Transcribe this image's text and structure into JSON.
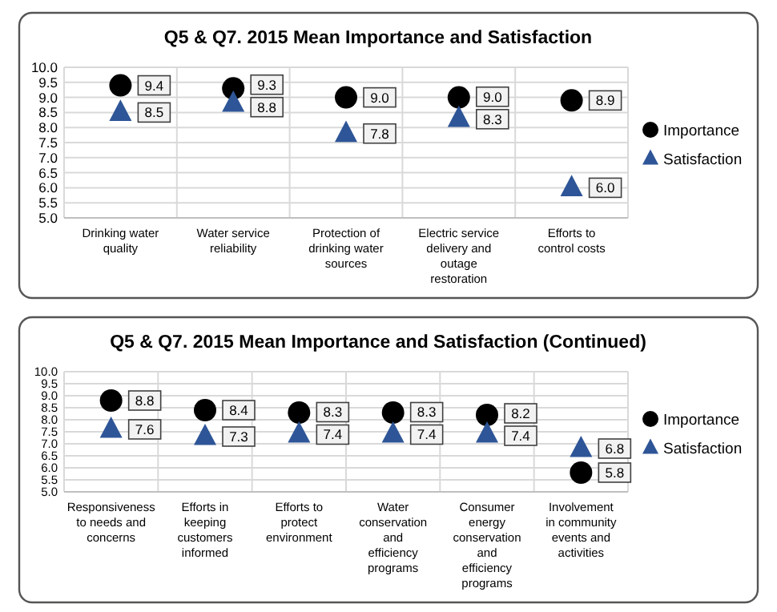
{
  "chart_data": [
    {
      "type": "scatter",
      "title": "Q5 & Q7. 2015 Mean Importance and Satisfaction",
      "categories": [
        "Drinking water quality",
        "Water service reliability",
        "Protection of drinking water sources",
        "Electric service delivery and outage restoration",
        "Efforts to control costs"
      ],
      "series": [
        {
          "name": "Importance",
          "color": "#000000",
          "marker": "circle",
          "values": [
            9.4,
            9.3,
            9.0,
            9.0,
            8.9
          ],
          "value_labels": [
            "9.4",
            "9.3",
            "9.0",
            "9.0",
            "8.9"
          ]
        },
        {
          "name": "Satisfaction",
          "color": "#2e5597",
          "marker": "triangle",
          "values": [
            8.5,
            8.8,
            7.8,
            8.3,
            6.0
          ],
          "value_labels": [
            "8.5",
            "8.8",
            "7.8",
            "8.3",
            "6.0"
          ]
        }
      ],
      "ylim": [
        5,
        10
      ],
      "yticks": [
        {
          "value": 5,
          "label": "5.0"
        },
        {
          "value": 5.5,
          "label": "5.5"
        },
        {
          "value": 6,
          "label": "6.0"
        },
        {
          "value": 6.5,
          "label": "6.5"
        },
        {
          "value": 7,
          "label": "7.0"
        },
        {
          "value": 7.5,
          "label": "7.5"
        },
        {
          "value": 8,
          "label": "8.0"
        },
        {
          "value": 8.5,
          "label": "8.5"
        },
        {
          "value": 9,
          "label": "9.0"
        },
        {
          "value": 9.5,
          "label": "9.5"
        },
        {
          "value": 10,
          "label": "10.0"
        }
      ],
      "grid": true,
      "legend": "right"
    },
    {
      "type": "scatter",
      "title": "Q5 & Q7. 2015 Mean Importance and Satisfaction (Continued)",
      "categories": [
        "Responsiveness to needs and concerns",
        "Efforts in keeping customers informed",
        "Efforts to protect environment",
        "Water conservation and efficiency programs",
        "Consumer energy conservation and efficiency programs",
        "Involvement in community events and activities"
      ],
      "series": [
        {
          "name": "Importance",
          "color": "#000000",
          "marker": "circle",
          "values": [
            8.8,
            8.4,
            8.3,
            8.3,
            8.2,
            5.8
          ],
          "value_labels": [
            "8.8",
            "8.4",
            "8.3",
            "8.3",
            "8.2",
            "5.8"
          ]
        },
        {
          "name": "Satisfaction",
          "color": "#2e5597",
          "marker": "triangle",
          "values": [
            7.6,
            7.3,
            7.4,
            7.4,
            7.4,
            6.8
          ],
          "value_labels": [
            "7.6",
            "7.3",
            "7.4",
            "7.4",
            "7.4",
            "6.8"
          ]
        }
      ],
      "ylim": [
        5,
        10
      ],
      "yticks": [
        {
          "value": 5,
          "label": "5.0"
        },
        {
          "value": 5.5,
          "label": "5.5"
        },
        {
          "value": 6,
          "label": "6.0"
        },
        {
          "value": 6.5,
          "label": "6.5"
        },
        {
          "value": 7,
          "label": "7.0"
        },
        {
          "value": 7.5,
          "label": "7.5"
        },
        {
          "value": 8,
          "label": "8.0"
        },
        {
          "value": 8.5,
          "label": "8.5"
        },
        {
          "value": 9,
          "label": "9.0"
        },
        {
          "value": 9.5,
          "label": "9.5"
        },
        {
          "value": 10,
          "label": "10.0"
        }
      ],
      "grid": true,
      "legend": "right"
    }
  ]
}
